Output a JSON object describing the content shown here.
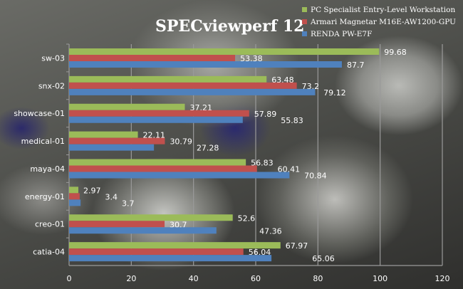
{
  "chart_data": {
    "type": "bar",
    "orientation": "horizontal",
    "title": "SPECviewperf 12",
    "categories": [
      "sw-03",
      "snx-02",
      "showcase-01",
      "medical-01",
      "maya-04",
      "energy-01",
      "creo-01",
      "catia-04"
    ],
    "series": [
      {
        "name": "PC Specialist Entry-Level Workstation",
        "color": "#9bbb59",
        "values": [
          99.68,
          63.48,
          37.21,
          22.11,
          56.83,
          2.97,
          52.6,
          67.97
        ],
        "labels": [
          "99.68",
          "63.48",
          "37.21",
          "22.11",
          "56.83",
          "2.97",
          "52.6",
          "67.97"
        ]
      },
      {
        "name": "Armari Magnetar M16E-AW1200-GPU",
        "color": "#c0504d",
        "values": [
          53.38,
          73.2,
          57.89,
          30.79,
          60.41,
          3.4,
          30.7,
          56.04
        ],
        "labels": [
          "53.38",
          "73.2",
          "57.89",
          "30.79",
          "60.41",
          "3.4",
          "30.7",
          "56.04"
        ]
      },
      {
        "name": "RENDA PW-E7F",
        "color": "#4f81bd",
        "values": [
          87.7,
          79.12,
          55.83,
          27.28,
          70.84,
          3.7,
          47.36,
          65.06
        ],
        "labels": [
          "87.7",
          "79.12",
          "55.83",
          "27.28",
          "70.84",
          "3.7",
          "47.36",
          "65.06"
        ]
      }
    ],
    "xlim": [
      0,
      120
    ],
    "xticks": [
      "0",
      "20",
      "40",
      "60",
      "80",
      "100",
      "120"
    ],
    "grid": true,
    "legend": "top-right"
  }
}
